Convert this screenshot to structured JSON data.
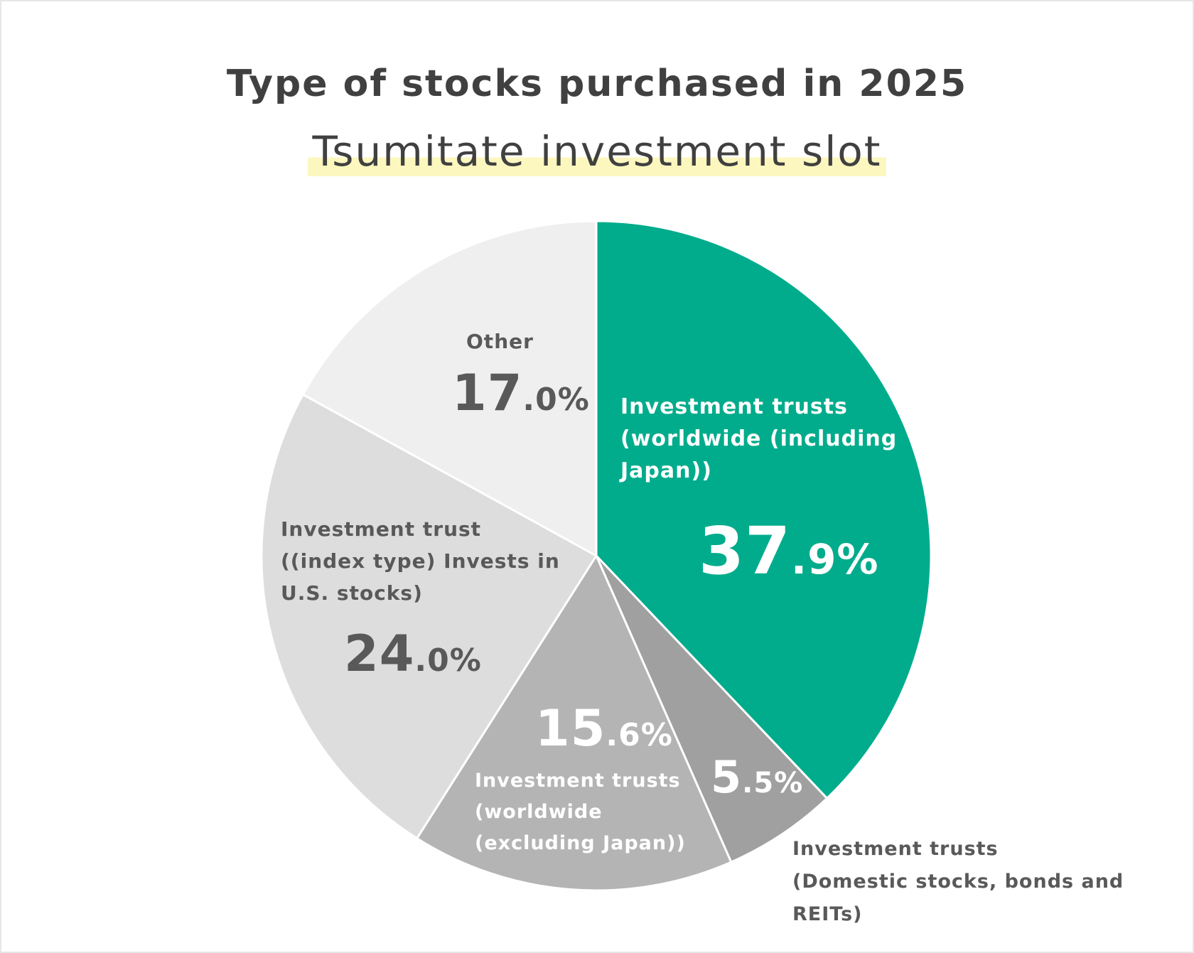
{
  "chart_data": {
    "type": "pie",
    "title": "Type of stocks purchased in 2025",
    "subtitle": "Tsumitate investment slot",
    "slices": [
      {
        "label": "Investment trusts (worldwide (including Japan))",
        "label_lines": [
          "Investment trusts",
          "(worldwide (including",
          "Japan))"
        ],
        "value": 37.9,
        "pct_int": "37",
        "pct_dec": ".9%",
        "color": "#00ac8c"
      },
      {
        "label": "Investment trusts (Domestic stocks, bonds and REITs)",
        "label_lines": [
          "Investment trusts",
          "(Domestic stocks, bonds and REITs)"
        ],
        "value": 5.5,
        "pct_int": "5",
        "pct_dec": ".5%",
        "color": "#9fa09f"
      },
      {
        "label": "Investment trusts (worldwide (excluding Japan))",
        "label_lines": [
          "Investment trusts",
          "(worldwide",
          "(excluding Japan))"
        ],
        "value": 15.6,
        "pct_int": "15",
        "pct_dec": ".6%",
        "color": "#b4b4b4"
      },
      {
        "label": "Investment trust ((index type) Invests in U.S. stocks)",
        "label_lines": [
          "Investment trust",
          "((index type) Invests in",
          "U.S. stocks)"
        ],
        "value": 24.0,
        "pct_int": "24",
        "pct_dec": ".0%",
        "color": "#dcdddc"
      },
      {
        "label": "Other",
        "label_lines": [
          "Other"
        ],
        "value": 17.0,
        "pct_int": "17",
        "pct_dec": ".0%",
        "color": "#efefef"
      }
    ]
  }
}
